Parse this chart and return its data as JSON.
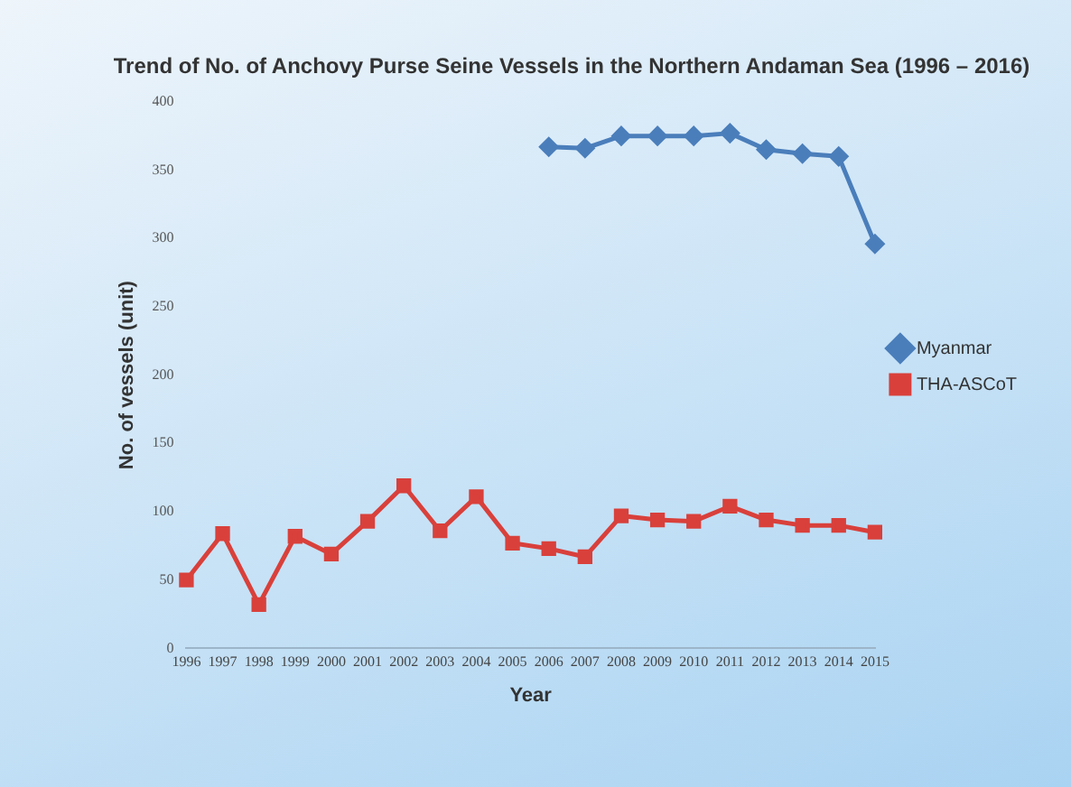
{
  "chart_data": {
    "type": "line",
    "title": "Trend of No. of Anchovy Purse Seine Vessels in the Northern Andaman Sea (1996 – 2016)",
    "xlabel": "Year",
    "ylabel": "No. of vessels (unit)",
    "categories": [
      "1996",
      "1997",
      "1998",
      "1999",
      "2000",
      "2001",
      "2002",
      "2003",
      "2004",
      "2005",
      "2006",
      "2007",
      "2008",
      "2009",
      "2010",
      "2011",
      "2012",
      "2013",
      "2014",
      "2015"
    ],
    "ylim": [
      0,
      400
    ],
    "yticks": [
      0,
      50,
      100,
      150,
      200,
      250,
      300,
      350,
      400
    ],
    "grid": false,
    "legend": "right",
    "series": [
      {
        "name": "Myanmar",
        "color": "#4a7ebb",
        "marker": "diamond",
        "values": [
          null,
          null,
          null,
          null,
          null,
          null,
          null,
          null,
          null,
          null,
          367,
          366,
          375,
          375,
          375,
          377,
          365,
          362,
          360,
          296
        ]
      },
      {
        "name": "THA-ASCoT",
        "color": "#d9403b",
        "marker": "square",
        "values": [
          50,
          84,
          32,
          82,
          69,
          93,
          119,
          86,
          111,
          77,
          73,
          67,
          97,
          94,
          93,
          104,
          94,
          90,
          90,
          85
        ]
      }
    ]
  }
}
